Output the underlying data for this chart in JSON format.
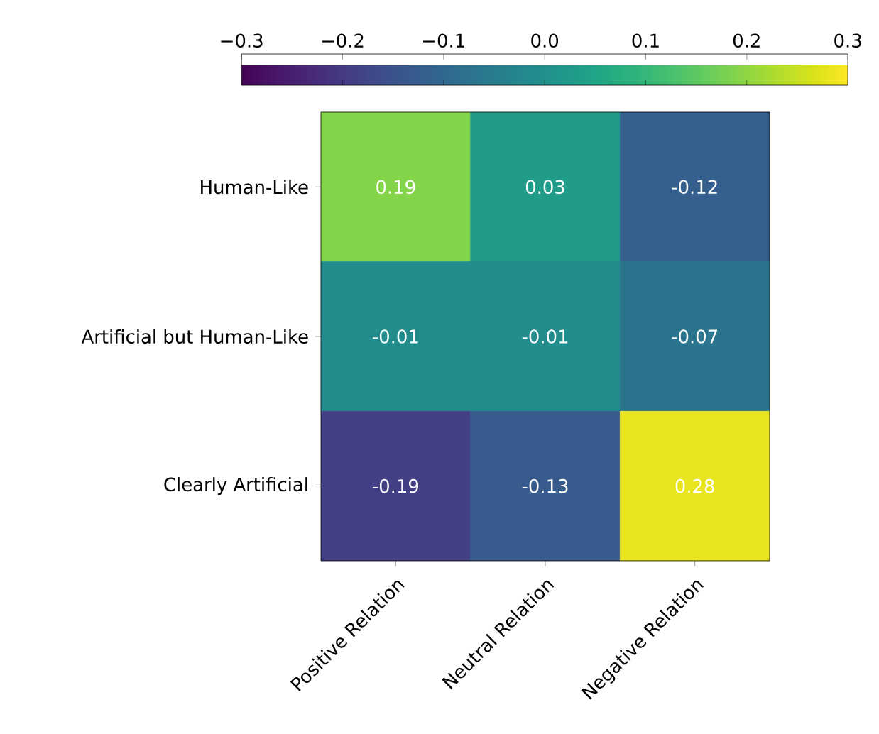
{
  "chart_data": {
    "type": "heatmap",
    "categories": [
      "Positive Relation",
      "Neutral Relation",
      "Negative Relation"
    ],
    "y_categories": [
      "Human-Like",
      "Artificial but Human-Like",
      "Clearly Artificial"
    ],
    "cells": [
      [
        0.19,
        0.03,
        -0.12
      ],
      [
        -0.01,
        -0.01,
        -0.07
      ],
      [
        -0.19,
        -0.13,
        0.28
      ]
    ],
    "cell_labels": [
      [
        "0.19",
        "0.03",
        "-0.12"
      ],
      [
        "-0.01",
        "-0.01",
        "-0.07"
      ],
      [
        "-0.19",
        "-0.13",
        "0.28"
      ]
    ],
    "clim": [
      -0.3,
      0.3
    ],
    "cticks": [
      {
        "value": -0.3,
        "label": "−0.3"
      },
      {
        "value": -0.2,
        "label": "−0.2"
      },
      {
        "value": -0.1,
        "label": "−0.1"
      },
      {
        "value": 0.0,
        "label": "0.0"
      },
      {
        "value": 0.1,
        "label": "0.1"
      },
      {
        "value": 0.2,
        "label": "0.2"
      },
      {
        "value": 0.3,
        "label": "0.3"
      }
    ]
  }
}
